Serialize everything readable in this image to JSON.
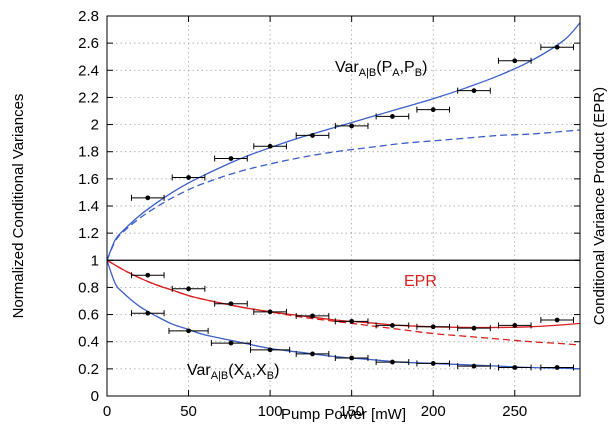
{
  "chart_data": {
    "type": "line",
    "xlabel": "Pump Power [mW]",
    "ylabel": "Normalized Conditional Variances",
    "ylabel_right": "Conditional Variance Product (EPR)",
    "xlim": [
      0,
      290
    ],
    "ylim": [
      0,
      2.8
    ],
    "xticks": [
      0,
      50,
      100,
      150,
      200,
      250
    ],
    "yticks": [
      0,
      0.2,
      0.4,
      0.6,
      0.8,
      1,
      1.2,
      1.4,
      1.6,
      1.8,
      2,
      2.2,
      2.4,
      2.6,
      2.8
    ],
    "grid": true,
    "reference_line_y": 1,
    "annotations": [
      {
        "base": "Var",
        "sub1": "A|B",
        "paren_open": "(",
        "v1": "P",
        "sub2": "A",
        "comma": ",",
        "v2": "P",
        "sub3": "B",
        "paren_close": ")"
      },
      {
        "base": "Var",
        "sub1": "A|B",
        "paren_open": "(",
        "v1": "X",
        "sub2": "A",
        "comma": ",",
        "v2": "X",
        "sub3": "B",
        "paren_close": ")"
      },
      {
        "text": "EPR"
      }
    ],
    "series": [
      {
        "kind": "points",
        "color": "#000000",
        "points": [
          {
            "x": 25,
            "y": 1.46,
            "xerr": 10
          },
          {
            "x": 50,
            "y": 1.61,
            "xerr": 10
          },
          {
            "x": 76,
            "y": 1.75,
            "xerr": 10
          },
          {
            "x": 100,
            "y": 1.84,
            "xerr": 10
          },
          {
            "x": 126,
            "y": 1.92,
            "xerr": 10
          },
          {
            "x": 150,
            "y": 1.99,
            "xerr": 10
          },
          {
            "x": 175,
            "y": 2.06,
            "xerr": 10
          },
          {
            "x": 200,
            "y": 2.11,
            "xerr": 10
          },
          {
            "x": 225,
            "y": 2.25,
            "xerr": 10
          },
          {
            "x": 250,
            "y": 2.47,
            "xerr": 10
          },
          {
            "x": 276,
            "y": 2.57,
            "xerr": 10
          }
        ]
      },
      {
        "kind": "points",
        "color": "#000000",
        "points": [
          {
            "x": 25,
            "y": 0.89,
            "xerr": 10
          },
          {
            "x": 50,
            "y": 0.79,
            "xerr": 10
          },
          {
            "x": 76,
            "y": 0.68,
            "xerr": 10
          },
          {
            "x": 100,
            "y": 0.62,
            "xerr": 10
          },
          {
            "x": 126,
            "y": 0.59,
            "xerr": 10
          },
          {
            "x": 150,
            "y": 0.55,
            "xerr": 10
          },
          {
            "x": 175,
            "y": 0.52,
            "xerr": 10
          },
          {
            "x": 200,
            "y": 0.51,
            "xerr": 10
          },
          {
            "x": 225,
            "y": 0.5,
            "xerr": 10
          },
          {
            "x": 250,
            "y": 0.52,
            "xerr": 10
          },
          {
            "x": 276,
            "y": 0.56,
            "xerr": 10
          }
        ]
      },
      {
        "kind": "points",
        "color": "#000000",
        "points": [
          {
            "x": 25,
            "y": 0.61,
            "xerr": 10
          },
          {
            "x": 50,
            "y": 0.48,
            "xerr": 12
          },
          {
            "x": 76,
            "y": 0.39,
            "xerr": 12
          },
          {
            "x": 100,
            "y": 0.34,
            "xerr": 12
          },
          {
            "x": 126,
            "y": 0.31,
            "xerr": 10
          },
          {
            "x": 150,
            "y": 0.28,
            "xerr": 10
          },
          {
            "x": 175,
            "y": 0.25,
            "xerr": 10
          },
          {
            "x": 200,
            "y": 0.24,
            "xerr": 10
          },
          {
            "x": 225,
            "y": 0.22,
            "xerr": 10
          },
          {
            "x": 250,
            "y": 0.21,
            "xerr": 10
          },
          {
            "x": 276,
            "y": 0.21,
            "xerr": 10
          }
        ]
      },
      {
        "kind": "curve",
        "color": "#3c5ec9",
        "dash": false,
        "x": [
          0,
          5,
          10,
          20,
          30,
          40,
          50,
          60,
          80,
          100,
          120,
          140,
          160,
          180,
          200,
          220,
          240,
          260,
          280,
          290
        ],
        "y": [
          1.0,
          1.15,
          1.22,
          1.33,
          1.42,
          1.5,
          1.57,
          1.63,
          1.74,
          1.83,
          1.91,
          1.98,
          2.05,
          2.12,
          2.19,
          2.27,
          2.36,
          2.47,
          2.62,
          2.75
        ]
      },
      {
        "kind": "curve",
        "color": "#3c5ec9",
        "dash": true,
        "x": [
          0,
          5,
          10,
          20,
          30,
          40,
          50,
          60,
          80,
          100,
          120,
          140,
          160,
          180,
          200,
          220,
          240,
          260,
          280,
          290
        ],
        "y": [
          1.0,
          1.14,
          1.21,
          1.31,
          1.39,
          1.46,
          1.52,
          1.57,
          1.65,
          1.71,
          1.76,
          1.8,
          1.83,
          1.86,
          1.88,
          1.9,
          1.92,
          1.93,
          1.95,
          1.96
        ]
      },
      {
        "kind": "curve",
        "color": "#3c5ec9",
        "dash": false,
        "x": [
          0,
          5,
          10,
          20,
          30,
          40,
          50,
          60,
          80,
          100,
          120,
          140,
          160,
          180,
          200,
          220,
          240,
          260,
          280,
          290
        ],
        "y": [
          1.0,
          0.83,
          0.76,
          0.66,
          0.59,
          0.53,
          0.49,
          0.45,
          0.4,
          0.35,
          0.32,
          0.29,
          0.27,
          0.25,
          0.24,
          0.23,
          0.22,
          0.21,
          0.205,
          0.2
        ]
      },
      {
        "kind": "curve",
        "color": "#d81e1e",
        "dash": false,
        "x": [
          0,
          10,
          20,
          30,
          40,
          50,
          60,
          80,
          100,
          120,
          140,
          160,
          180,
          200,
          220,
          240,
          260,
          280,
          290
        ],
        "y": [
          1.0,
          0.93,
          0.87,
          0.82,
          0.78,
          0.74,
          0.71,
          0.66,
          0.62,
          0.59,
          0.56,
          0.54,
          0.52,
          0.51,
          0.505,
          0.505,
          0.51,
          0.525,
          0.535
        ]
      },
      {
        "kind": "curve",
        "color": "#d81e1e",
        "dash": true,
        "x": [
          0,
          10,
          20,
          30,
          40,
          50,
          60,
          80,
          100,
          120,
          140,
          160,
          180,
          200,
          220,
          240,
          260,
          280,
          290
        ],
        "y": [
          1.0,
          0.93,
          0.87,
          0.82,
          0.78,
          0.74,
          0.71,
          0.66,
          0.62,
          0.58,
          0.55,
          0.52,
          0.49,
          0.46,
          0.44,
          0.42,
          0.4,
          0.385,
          0.375
        ]
      }
    ]
  }
}
